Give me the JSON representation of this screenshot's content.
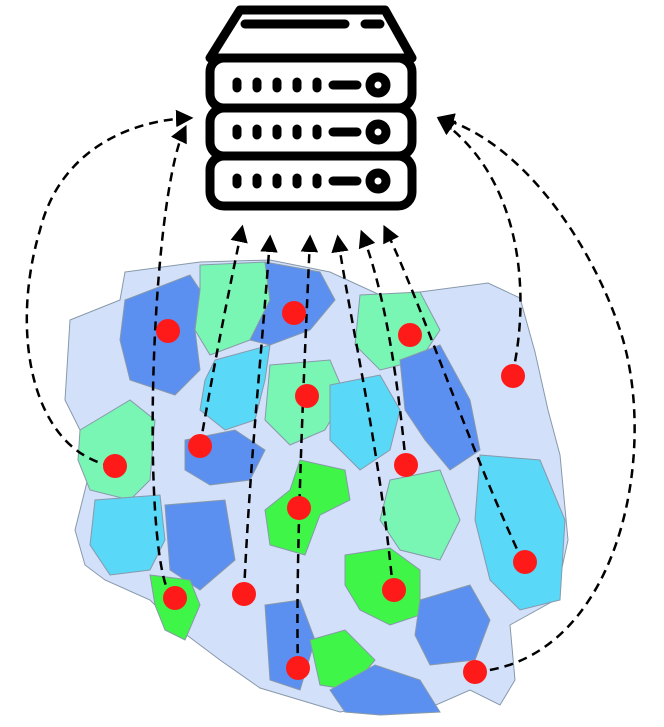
{
  "diagram": {
    "server_icon": "server-rack-icon",
    "map_region": "poland-map",
    "colors": {
      "dashed_link": "#000000",
      "node": "#ff1a1a",
      "region_light": "#d3e0fa",
      "region_mid": "#5b8ff0",
      "region_cyan": "#5ad8f8",
      "region_mint": "#79f5b4",
      "region_green": "#3ff548"
    },
    "node_count": 16
  }
}
